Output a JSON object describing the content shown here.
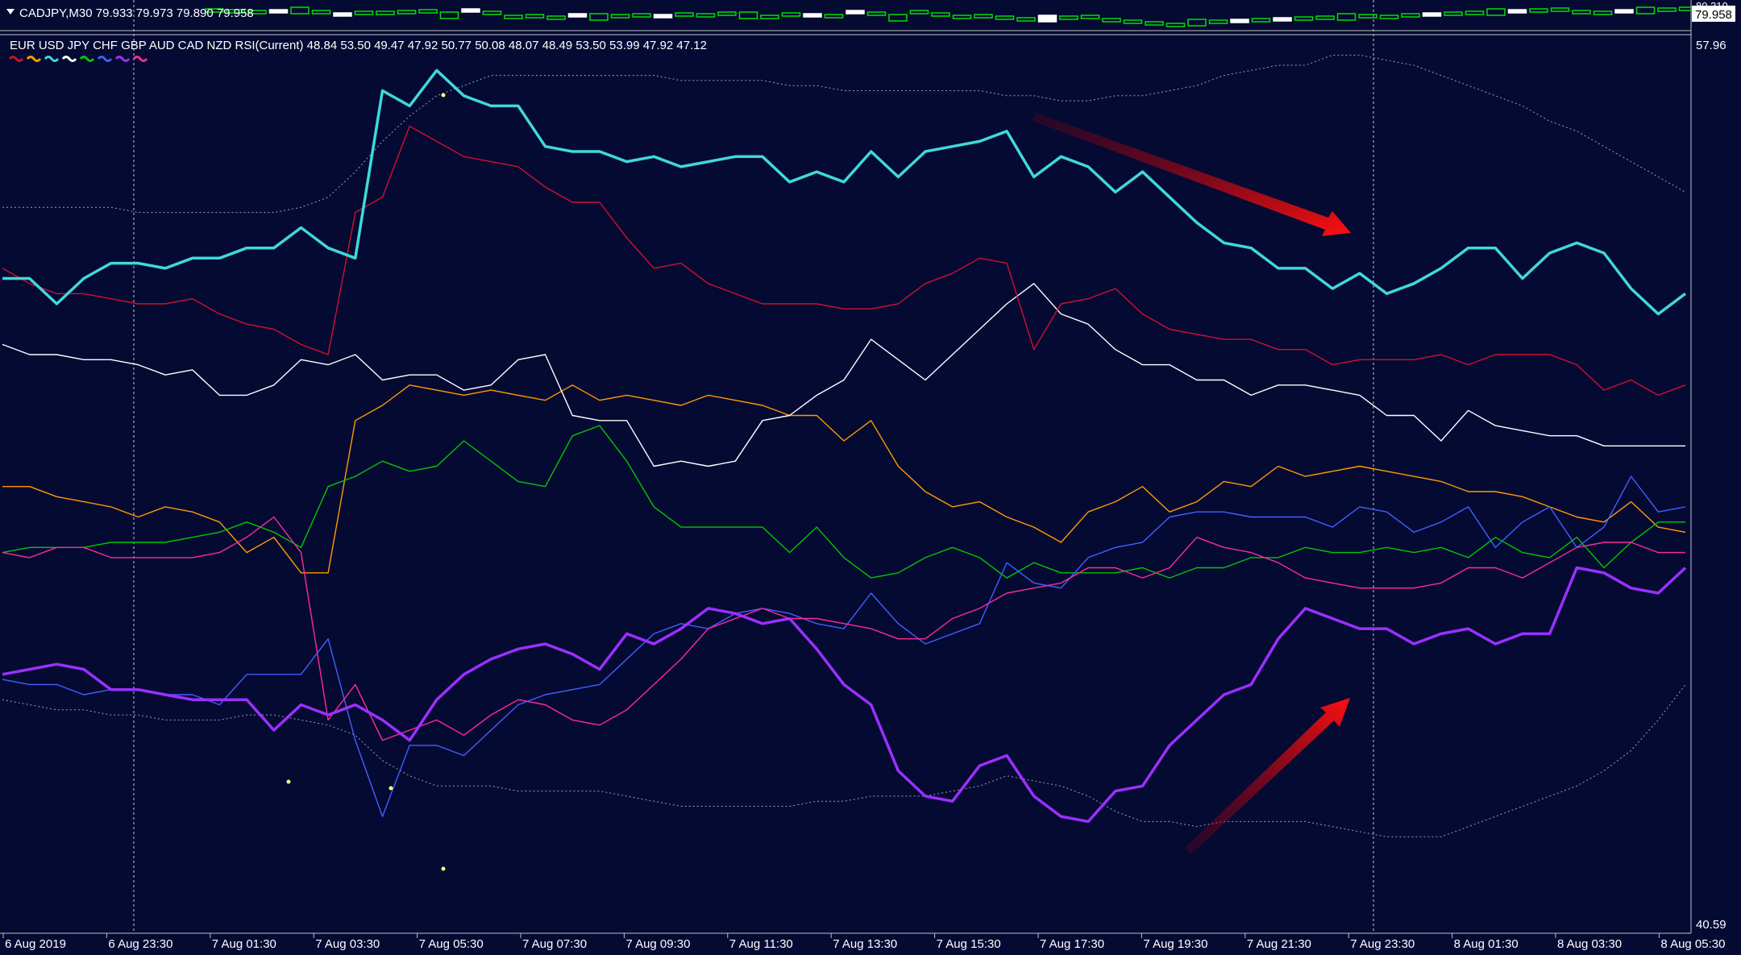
{
  "window": {
    "symbol_line": "CADJPY,M30  79.933 79.973 79.890 79.958",
    "price_top": "80.310",
    "price_current": "79.958"
  },
  "indicator": {
    "title": "EUR USD JPY  CHF GBP AUD CAD NZD RSI(Current) 48.84 53.50 49.47 47.92 50.77 50.08 48.07 48.49 53.50 53.99 47.92 47.12",
    "level_top": "57.96",
    "level_bottom": "40.59"
  },
  "x_labels": [
    "6 Aug 2019",
    "6 Aug 23:30",
    "7 Aug 01:30",
    "7 Aug 03:30",
    "7 Aug 05:30",
    "7 Aug 07:30",
    "7 Aug 09:30",
    "7 Aug 11:30",
    "7 Aug 13:30",
    "7 Aug 15:30",
    "7 Aug 17:30",
    "7 Aug 19:30",
    "7 Aug 21:30",
    "7 Aug 23:30",
    "8 Aug 01:30",
    "8 Aug 03:30",
    "8 Aug 05:30"
  ],
  "colors": {
    "background": "#050a33",
    "eur": "#d0112b",
    "usd": "#ff9a00",
    "jpy": "#40d8d8",
    "chf": "#ffffff",
    "gbp": "#00c800",
    "aud": "#4060ff",
    "cad": "#9b30ff",
    "nzd": "#ff2a9a",
    "arrow": "#ff1010",
    "candle": "#00e000"
  },
  "chart_data": {
    "type": "line",
    "y_range": [
      40.59,
      57.96
    ],
    "x": [
      "6 Aug 22:30",
      "6 Aug 23:00",
      "6 Aug 23:30",
      "7 Aug 00:00",
      "7 Aug 00:30",
      "7 Aug 01:00",
      "7 Aug 01:30",
      "7 Aug 02:00",
      "7 Aug 02:30",
      "7 Aug 03:00",
      "7 Aug 03:30",
      "7 Aug 04:00",
      "7 Aug 04:30",
      "7 Aug 05:00",
      "7 Aug 05:30",
      "7 Aug 06:00",
      "7 Aug 06:30",
      "7 Aug 07:00",
      "7 Aug 07:30",
      "7 Aug 08:00",
      "7 Aug 08:30",
      "7 Aug 09:00",
      "7 Aug 09:30",
      "7 Aug 10:00",
      "7 Aug 10:30",
      "7 Aug 11:00",
      "7 Aug 11:30",
      "7 Aug 12:00",
      "7 Aug 12:30",
      "7 Aug 13:00",
      "7 Aug 13:30",
      "7 Aug 14:00",
      "7 Aug 14:30",
      "7 Aug 15:00",
      "7 Aug 15:30",
      "7 Aug 16:00",
      "7 Aug 16:30",
      "7 Aug 17:00",
      "7 Aug 17:30",
      "7 Aug 18:00",
      "7 Aug 18:30",
      "7 Aug 19:00",
      "7 Aug 19:30",
      "7 Aug 20:00",
      "7 Aug 20:30",
      "7 Aug 21:00",
      "7 Aug 21:30",
      "7 Aug 22:00",
      "7 Aug 22:30",
      "7 Aug 23:00",
      "7 Aug 23:30",
      "8 Aug 00:00",
      "8 Aug 00:30",
      "8 Aug 01:00",
      "8 Aug 01:30",
      "8 Aug 02:00",
      "8 Aug 02:30",
      "8 Aug 03:00",
      "8 Aug 03:30",
      "8 Aug 04:00",
      "8 Aug 04:30",
      "8 Aug 05:00",
      "8 Aug 05:30"
    ],
    "series": [
      {
        "name": "EUR",
        "color": "#d0112b",
        "width": 1.4,
        "values": [
          53.5,
          53.2,
          53.0,
          53.0,
          52.9,
          52.8,
          52.8,
          52.9,
          52.6,
          52.4,
          52.3,
          52.0,
          51.8,
          54.6,
          54.9,
          56.3,
          56.0,
          55.7,
          55.6,
          55.5,
          55.1,
          54.8,
          54.8,
          54.1,
          53.5,
          53.6,
          53.2,
          53.0,
          52.8,
          52.8,
          52.8,
          52.7,
          52.7,
          52.8,
          53.2,
          53.4,
          53.7,
          53.6,
          51.9,
          52.8,
          52.9,
          53.1,
          52.6,
          52.3,
          52.2,
          52.1,
          52.1,
          51.9,
          51.9,
          51.6,
          51.7,
          51.7,
          51.7,
          51.8,
          51.6,
          51.8,
          51.8,
          51.8,
          51.6,
          51.1,
          51.3,
          51.0,
          51.2
        ]
      },
      {
        "name": "USD",
        "color": "#ff9a00",
        "width": 1.4,
        "values": [
          49.2,
          49.2,
          49.0,
          48.9,
          48.8,
          48.6,
          48.8,
          48.7,
          48.5,
          47.9,
          48.2,
          47.5,
          47.5,
          50.5,
          50.8,
          51.2,
          51.1,
          51.0,
          51.1,
          51.0,
          50.9,
          51.2,
          50.9,
          51.0,
          50.9,
          50.8,
          51.0,
          50.9,
          50.8,
          50.6,
          50.6,
          50.1,
          50.5,
          49.6,
          49.1,
          48.8,
          48.9,
          48.6,
          48.4,
          48.1,
          48.7,
          48.9,
          49.2,
          48.7,
          48.9,
          49.3,
          49.2,
          49.6,
          49.4,
          49.5,
          49.6,
          49.5,
          49.4,
          49.3,
          49.1,
          49.1,
          49.0,
          48.8,
          48.6,
          48.5,
          48.9,
          48.4,
          48.3
        ]
      },
      {
        "name": "JPY",
        "color": "#40d8d8",
        "width": 3.5,
        "values": [
          53.3,
          53.3,
          52.8,
          53.3,
          53.6,
          53.6,
          53.5,
          53.7,
          53.7,
          53.9,
          53.9,
          54.3,
          53.9,
          53.7,
          57.0,
          56.7,
          57.4,
          56.9,
          56.7,
          56.7,
          55.9,
          55.8,
          55.8,
          55.6,
          55.7,
          55.5,
          55.6,
          55.7,
          55.7,
          55.2,
          55.4,
          55.2,
          55.8,
          55.3,
          55.8,
          55.9,
          56.0,
          56.2,
          55.3,
          55.7,
          55.5,
          55.0,
          55.4,
          54.9,
          54.4,
          54.0,
          53.9,
          53.5,
          53.5,
          53.1,
          53.4,
          53.0,
          53.2,
          53.5,
          53.9,
          53.9,
          53.3,
          53.8,
          54.0,
          53.8,
          53.1,
          52.6,
          53.0
        ]
      },
      {
        "name": "CHF",
        "color": "#ffffff",
        "width": 1.4,
        "values": [
          52.0,
          51.8,
          51.8,
          51.7,
          51.7,
          51.6,
          51.4,
          51.5,
          51.0,
          51.0,
          51.2,
          51.7,
          51.6,
          51.8,
          51.3,
          51.4,
          51.4,
          51.1,
          51.2,
          51.7,
          51.8,
          50.6,
          50.5,
          50.5,
          49.6,
          49.7,
          49.6,
          49.7,
          50.5,
          50.6,
          51.0,
          51.3,
          52.1,
          51.7,
          51.3,
          51.8,
          52.3,
          52.8,
          53.2,
          52.6,
          52.4,
          51.9,
          51.6,
          51.6,
          51.3,
          51.3,
          51.0,
          51.2,
          51.2,
          51.1,
          51.0,
          50.6,
          50.6,
          50.1,
          50.7,
          50.4,
          50.3,
          50.2,
          50.2,
          50.0,
          50.0,
          50.0,
          50.0
        ]
      },
      {
        "name": "GBP",
        "color": "#00c800",
        "width": 1.4,
        "values": [
          47.9,
          48.0,
          48.0,
          48.0,
          48.1,
          48.1,
          48.1,
          48.2,
          48.3,
          48.5,
          48.3,
          48.0,
          49.2,
          49.4,
          49.7,
          49.5,
          49.6,
          50.1,
          49.7,
          49.3,
          49.2,
          50.2,
          50.4,
          49.7,
          48.8,
          48.4,
          48.4,
          48.4,
          48.4,
          47.9,
          48.4,
          47.8,
          47.4,
          47.5,
          47.8,
          48.0,
          47.8,
          47.4,
          47.7,
          47.5,
          47.5,
          47.5,
          47.6,
          47.4,
          47.6,
          47.6,
          47.8,
          47.8,
          48.0,
          47.9,
          47.9,
          48.0,
          47.9,
          48.0,
          47.8,
          48.2,
          47.9,
          47.8,
          48.2,
          47.6,
          48.1,
          48.5,
          48.5
        ]
      },
      {
        "name": "AUD",
        "color": "#4060ff",
        "width": 1.4,
        "values": [
          45.4,
          45.3,
          45.3,
          45.1,
          45.2,
          45.2,
          45.1,
          45.1,
          44.9,
          45.5,
          45.5,
          45.5,
          46.2,
          44.2,
          42.7,
          44.1,
          44.1,
          43.9,
          44.4,
          44.9,
          45.1,
          45.2,
          45.3,
          45.8,
          46.3,
          46.5,
          46.4,
          46.7,
          46.8,
          46.7,
          46.5,
          46.4,
          47.1,
          46.5,
          46.1,
          46.3,
          46.5,
          47.7,
          47.3,
          47.2,
          47.8,
          48.0,
          48.1,
          48.6,
          48.7,
          48.7,
          48.6,
          48.6,
          48.6,
          48.4,
          48.8,
          48.7,
          48.3,
          48.5,
          48.8,
          48.0,
          48.5,
          48.8,
          48.0,
          48.4,
          49.4,
          48.7,
          48.8
        ]
      },
      {
        "name": "CAD",
        "color": "#9b30ff",
        "width": 3.5,
        "values": [
          45.5,
          45.6,
          45.7,
          45.6,
          45.2,
          45.2,
          45.1,
          45.0,
          45.0,
          45.0,
          44.4,
          44.9,
          44.7,
          44.9,
          44.6,
          44.2,
          45.0,
          45.5,
          45.8,
          46.0,
          46.1,
          45.9,
          45.6,
          46.3,
          46.1,
          46.4,
          46.8,
          46.7,
          46.5,
          46.6,
          46.0,
          45.3,
          44.9,
          43.6,
          43.1,
          43.0,
          43.7,
          43.9,
          43.1,
          42.7,
          42.6,
          43.2,
          43.3,
          44.1,
          44.6,
          45.1,
          45.3,
          46.2,
          46.8,
          46.6,
          46.4,
          46.4,
          46.1,
          46.3,
          46.4,
          46.1,
          46.3,
          46.3,
          47.6,
          47.5,
          47.2,
          47.1,
          47.6
        ]
      },
      {
        "name": "NZD",
        "color": "#ff2a9a",
        "width": 1.4,
        "values": [
          47.9,
          47.8,
          48.0,
          48.0,
          47.8,
          47.8,
          47.8,
          47.8,
          47.9,
          48.2,
          48.6,
          47.9,
          44.6,
          45.3,
          44.2,
          44.4,
          44.6,
          44.3,
          44.7,
          45.0,
          44.9,
          44.6,
          44.5,
          44.8,
          45.3,
          45.8,
          46.4,
          46.6,
          46.8,
          46.6,
          46.6,
          46.5,
          46.4,
          46.2,
          46.2,
          46.6,
          46.8,
          47.1,
          47.2,
          47.3,
          47.6,
          47.6,
          47.4,
          47.6,
          48.2,
          48.0,
          47.9,
          47.7,
          47.4,
          47.3,
          47.2,
          47.2,
          47.2,
          47.3,
          47.6,
          47.6,
          47.4,
          47.7,
          48.0,
          48.1,
          48.1,
          47.9,
          47.9
        ]
      },
      {
        "name": "band-upper",
        "color": "#9aa0b8",
        "width": 1.0,
        "dashed": true,
        "values": [
          54.7,
          54.7,
          54.7,
          54.7,
          54.7,
          54.6,
          54.6,
          54.6,
          54.6,
          54.6,
          54.6,
          54.7,
          54.9,
          55.4,
          56.0,
          56.5,
          56.9,
          57.1,
          57.3,
          57.3,
          57.3,
          57.3,
          57.3,
          57.3,
          57.3,
          57.2,
          57.2,
          57.2,
          57.2,
          57.1,
          57.1,
          57.0,
          57.0,
          57.0,
          57.0,
          57.0,
          57.0,
          56.9,
          56.9,
          56.8,
          56.8,
          56.9,
          56.9,
          57.0,
          57.1,
          57.3,
          57.4,
          57.5,
          57.5,
          57.7,
          57.7,
          57.6,
          57.5,
          57.3,
          57.1,
          56.9,
          56.7,
          56.4,
          56.2,
          55.9,
          55.6,
          55.3,
          55.0
        ]
      },
      {
        "name": "band-lower",
        "color": "#9aa0b8",
        "width": 1.0,
        "dashed": true,
        "values": [
          45.0,
          44.9,
          44.8,
          44.8,
          44.7,
          44.7,
          44.6,
          44.6,
          44.6,
          44.7,
          44.7,
          44.6,
          44.5,
          44.3,
          43.8,
          43.5,
          43.3,
          43.3,
          43.3,
          43.2,
          43.2,
          43.2,
          43.2,
          43.1,
          43.0,
          42.9,
          42.9,
          42.9,
          42.9,
          42.9,
          43.0,
          43.0,
          43.1,
          43.1,
          43.1,
          43.2,
          43.3,
          43.5,
          43.4,
          43.3,
          43.1,
          42.8,
          42.6,
          42.6,
          42.5,
          42.6,
          42.6,
          42.6,
          42.6,
          42.5,
          42.4,
          42.3,
          42.3,
          42.3,
          42.5,
          42.7,
          42.9,
          43.1,
          43.3,
          43.6,
          44.0,
          44.6,
          45.3
        ]
      }
    ]
  }
}
